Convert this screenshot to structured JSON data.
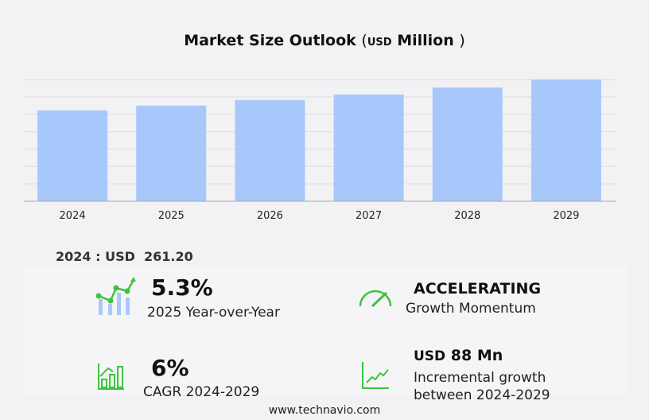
{
  "chart_data": {
    "type": "bar",
    "title": "Market Size Outlook",
    "unit": "USD",
    "unit_suffix": "Million",
    "categories": [
      "2024",
      "2025",
      "2026",
      "2027",
      "2028",
      "2029"
    ],
    "values": [
      261.2,
      275.0,
      291.0,
      307.0,
      327.0,
      349.2
    ],
    "ylim": [
      0,
      350
    ],
    "grid": true,
    "bar_color": "#a8c8fc"
  },
  "base": {
    "label": "2024 : USD",
    "value": "261.20"
  },
  "stats": {
    "yoy": {
      "value": "5.3%",
      "label": "2025 Year-over-Year"
    },
    "momentum": {
      "value": "ACCELERATING",
      "label": "Growth Momentum"
    },
    "cagr": {
      "value": "6%",
      "label": "CAGR 2024-2029"
    },
    "incremental": {
      "value_prefix": "USD",
      "value": "88 Mn",
      "label1": "Incremental growth",
      "label2": "between 2024-2029"
    }
  },
  "footer": "www.technavio.com",
  "colors": {
    "accent": "#3cc43c",
    "bar": "#a8c8fc"
  }
}
